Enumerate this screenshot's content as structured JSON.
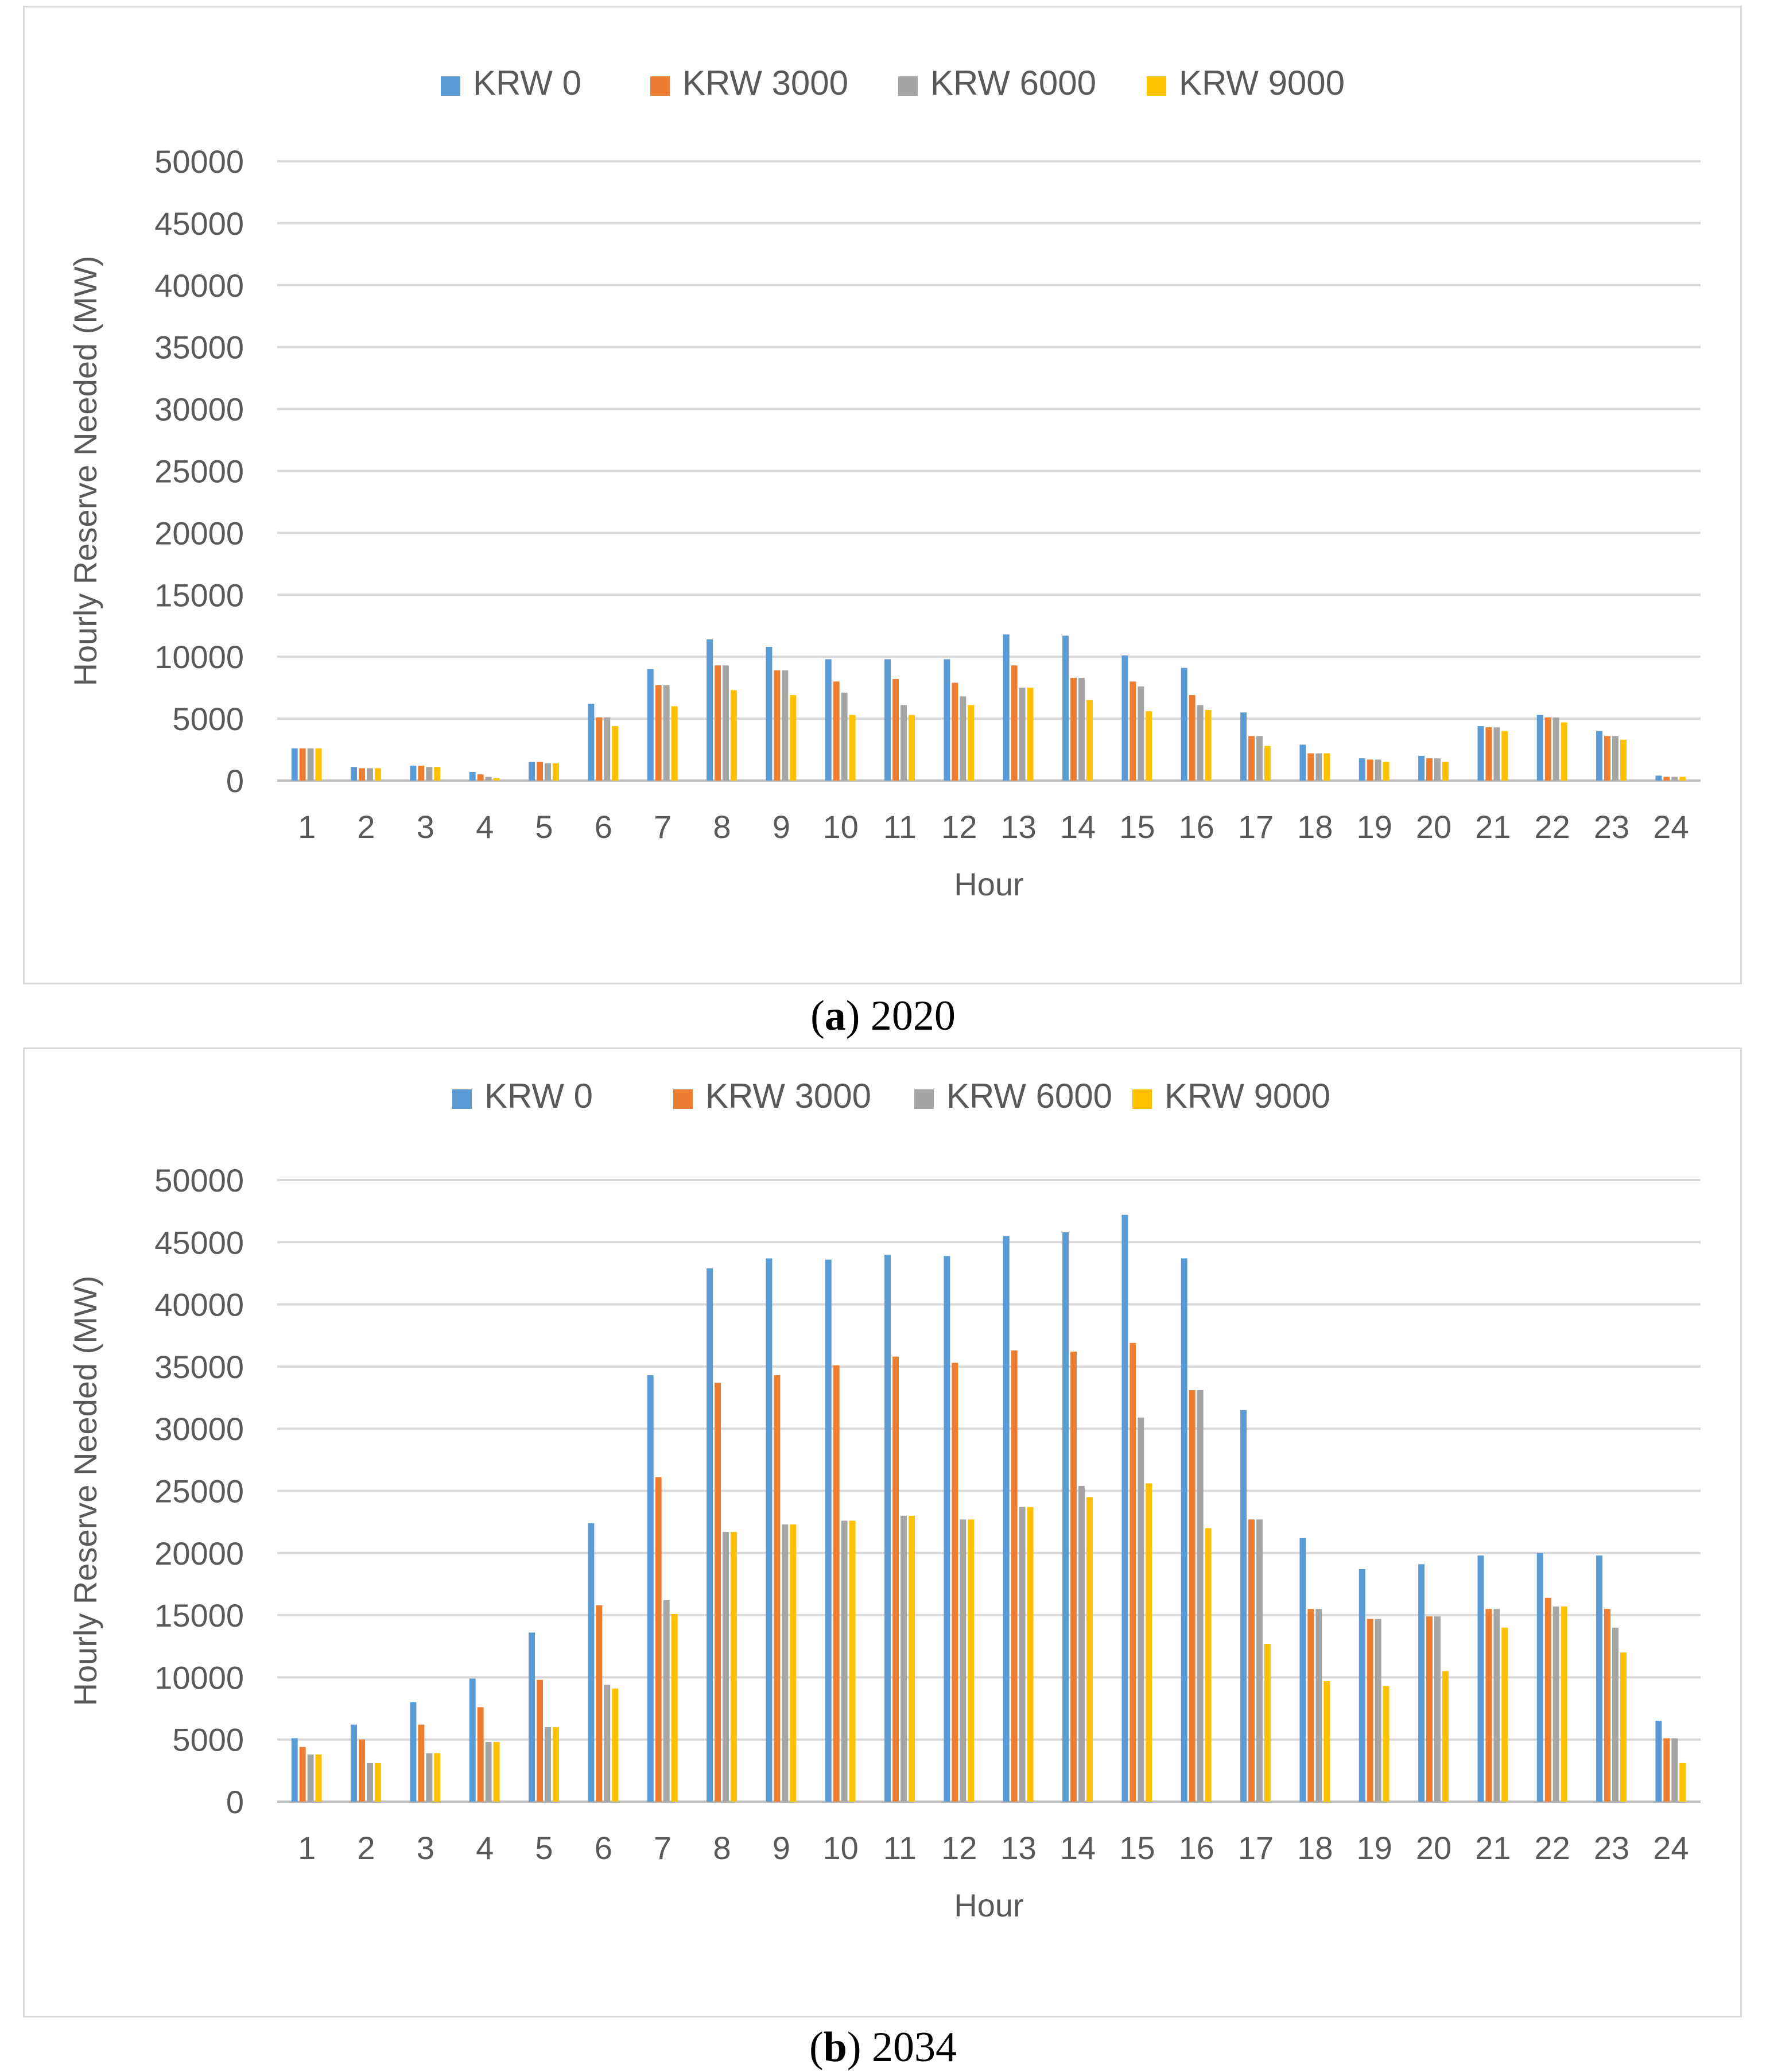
{
  "colors": {
    "KRW 0": "#5b9bd5",
    "KRW 3000": "#ed7d31",
    "KRW 6000": "#a5a5a5",
    "KRW 9000": "#ffc000"
  },
  "captions": [
    {
      "letter": "a",
      "text": ") 2020"
    },
    {
      "letter": "b",
      "text": ") 2034"
    }
  ],
  "chart_data": [
    {
      "type": "bar",
      "title": "",
      "xlabel": "Hour",
      "ylabel": "Hourly Reserve Needed (MW)",
      "ylim": [
        0,
        50000
      ],
      "yticks": [
        0,
        5000,
        10000,
        15000,
        20000,
        25000,
        30000,
        35000,
        40000,
        45000,
        50000
      ],
      "grid": true,
      "legend": "top",
      "categories": [
        "1",
        "2",
        "3",
        "4",
        "5",
        "6",
        "7",
        "8",
        "9",
        "10",
        "11",
        "12",
        "13",
        "14",
        "15",
        "16",
        "17",
        "18",
        "19",
        "20",
        "21",
        "22",
        "23",
        "24"
      ],
      "series": [
        {
          "name": "KRW 0",
          "values": [
            2600,
            1100,
            1200,
            700,
            1500,
            6200,
            9000,
            11400,
            10800,
            9800,
            9800,
            9800,
            11800,
            11700,
            10100,
            9100,
            5500,
            2900,
            1800,
            2000,
            4400,
            5300,
            4000,
            400
          ]
        },
        {
          "name": "KRW 3000",
          "values": [
            2600,
            1000,
            1200,
            500,
            1500,
            5100,
            7700,
            9300,
            8900,
            8000,
            8200,
            7900,
            9300,
            8300,
            8000,
            6900,
            3600,
            2200,
            1700,
            1800,
            4300,
            5100,
            3600,
            300
          ]
        },
        {
          "name": "KRW 6000",
          "values": [
            2600,
            1000,
            1100,
            300,
            1400,
            5100,
            7700,
            9300,
            8900,
            7100,
            6100,
            6800,
            7500,
            8300,
            7600,
            6100,
            3600,
            2200,
            1700,
            1800,
            4300,
            5100,
            3600,
            300
          ]
        },
        {
          "name": "KRW 9000",
          "values": [
            2600,
            1000,
            1100,
            200,
            1400,
            4400,
            6000,
            7300,
            6900,
            5300,
            5300,
            6100,
            7500,
            6500,
            5600,
            5700,
            2800,
            2200,
            1500,
            1500,
            4000,
            4700,
            3300,
            300
          ]
        }
      ]
    },
    {
      "type": "bar",
      "title": "",
      "xlabel": "Hour",
      "ylabel": "Hourly Reserve Needed (MW)",
      "ylim": [
        0,
        50000
      ],
      "yticks": [
        0,
        5000,
        10000,
        15000,
        20000,
        25000,
        30000,
        35000,
        40000,
        45000,
        50000
      ],
      "grid": true,
      "legend": "top",
      "categories": [
        "1",
        "2",
        "3",
        "4",
        "5",
        "6",
        "7",
        "8",
        "9",
        "10",
        "11",
        "12",
        "13",
        "14",
        "15",
        "16",
        "17",
        "18",
        "19",
        "20",
        "21",
        "22",
        "23",
        "24"
      ],
      "series": [
        {
          "name": "KRW 0",
          "values": [
            5100,
            6200,
            8000,
            9900,
            13600,
            22400,
            34300,
            42900,
            43700,
            43600,
            44000,
            43900,
            45500,
            45800,
            47200,
            43700,
            31500,
            21200,
            18700,
            19100,
            19800,
            20000,
            19800,
            6500
          ]
        },
        {
          "name": "KRW 3000",
          "values": [
            4400,
            5000,
            6200,
            7600,
            9800,
            15800,
            26100,
            33700,
            34300,
            35100,
            35800,
            35300,
            36300,
            36200,
            36900,
            33100,
            22700,
            15500,
            14700,
            14900,
            15500,
            16400,
            15500,
            5100
          ]
        },
        {
          "name": "KRW 6000",
          "values": [
            3800,
            3100,
            3900,
            4800,
            6000,
            9400,
            16200,
            21700,
            22300,
            22600,
            23000,
            22700,
            23700,
            25400,
            30900,
            33100,
            22700,
            15500,
            14700,
            14900,
            15500,
            15700,
            14000,
            5100
          ]
        },
        {
          "name": "KRW 9000",
          "values": [
            3800,
            3100,
            3900,
            4800,
            6000,
            9100,
            15100,
            21700,
            22300,
            22600,
            23000,
            22700,
            23700,
            24500,
            25600,
            22000,
            12700,
            9700,
            9300,
            10500,
            14000,
            15700,
            12000,
            3100
          ]
        }
      ]
    }
  ]
}
